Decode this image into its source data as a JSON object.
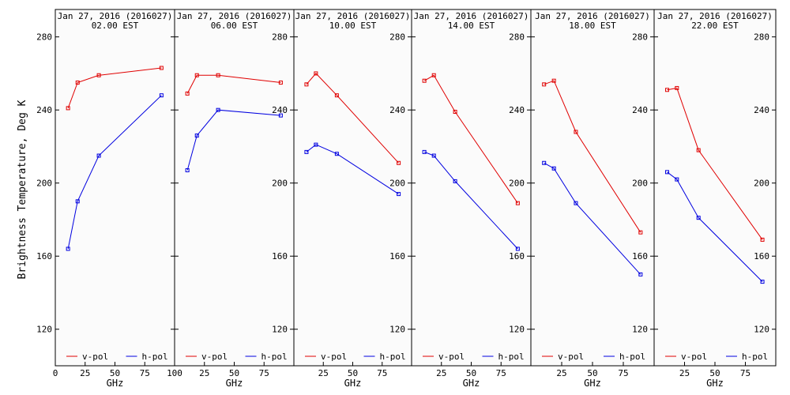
{
  "chart_data": {
    "type": "line",
    "ylabel": "Brightness Temperature, Deg K",
    "xlabel": "GHz",
    "ylim": [
      100,
      295
    ],
    "xlim": [
      0,
      100
    ],
    "yticks": [
      120,
      160,
      200,
      240,
      280
    ],
    "yticks_labels": [
      "120",
      "160",
      "200",
      "240",
      "280"
    ],
    "xticks": [
      0,
      25,
      50,
      75,
      100
    ],
    "xticks_labels_first": [
      "0",
      "25",
      "50",
      "75",
      "100"
    ],
    "xticks_labels": [
      "",
      "25",
      "50",
      "75",
      ""
    ],
    "series_colors": {
      "v-pol": "#e00000",
      "h-pol": "#0000e0"
    },
    "legend": [
      {
        "name": "v-pol",
        "color": "#e00000"
      },
      {
        "name": "h-pol",
        "color": "#0000e0"
      }
    ],
    "legend_placement": "bottom",
    "panels": [
      {
        "title": "Jan 27, 2016 (2016027)",
        "subtitle": "02.00 EST",
        "series": [
          {
            "name": "v-pol",
            "x": [
              10.7,
              18.7,
              36.5,
              89
            ],
            "y": [
              241,
              255,
              259,
              263
            ]
          },
          {
            "name": "h-pol",
            "x": [
              10.7,
              18.7,
              36.5,
              89
            ],
            "y": [
              164,
              190,
              215,
              248
            ]
          }
        ]
      },
      {
        "title": "Jan 27, 2016 (2016027)",
        "subtitle": "06.00 EST",
        "series": [
          {
            "name": "v-pol",
            "x": [
              10.7,
              18.7,
              36.5,
              89
            ],
            "y": [
              249,
              259,
              259,
              255
            ]
          },
          {
            "name": "h-pol",
            "x": [
              10.7,
              18.7,
              36.5,
              89
            ],
            "y": [
              207,
              226,
              240,
              237
            ]
          }
        ]
      },
      {
        "title": "Jan 27, 2016 (2016027)",
        "subtitle": "10.00 EST",
        "series": [
          {
            "name": "v-pol",
            "x": [
              10.7,
              18.7,
              36.5,
              89
            ],
            "y": [
              254,
              260,
              248,
              211
            ]
          },
          {
            "name": "h-pol",
            "x": [
              10.7,
              18.7,
              36.5,
              89
            ],
            "y": [
              217,
              221,
              216,
              194
            ]
          }
        ]
      },
      {
        "title": "Jan 27, 2016 (2016027)",
        "subtitle": "14.00 EST",
        "series": [
          {
            "name": "v-pol",
            "x": [
              10.7,
              18.7,
              36.5,
              89
            ],
            "y": [
              256,
              259,
              239,
              189
            ]
          },
          {
            "name": "h-pol",
            "x": [
              10.7,
              18.7,
              36.5,
              89
            ],
            "y": [
              217,
              215,
              201,
              164
            ]
          }
        ]
      },
      {
        "title": "Jan 27, 2016 (2016027)",
        "subtitle": "18.00 EST",
        "series": [
          {
            "name": "v-pol",
            "x": [
              10.7,
              18.7,
              36.5,
              89
            ],
            "y": [
              254,
              256,
              228,
              173
            ]
          },
          {
            "name": "h-pol",
            "x": [
              10.7,
              18.7,
              36.5,
              89
            ],
            "y": [
              211,
              208,
              189,
              150
            ]
          }
        ]
      },
      {
        "title": "Jan 27, 2016 (2016027)",
        "subtitle": "22.00 EST",
        "series": [
          {
            "name": "v-pol",
            "x": [
              10.7,
              18.7,
              36.5,
              89
            ],
            "y": [
              251,
              252,
              218,
              169
            ]
          },
          {
            "name": "h-pol",
            "x": [
              10.7,
              18.7,
              36.5,
              89
            ],
            "y": [
              206,
              202,
              181,
              146
            ]
          }
        ]
      }
    ]
  }
}
